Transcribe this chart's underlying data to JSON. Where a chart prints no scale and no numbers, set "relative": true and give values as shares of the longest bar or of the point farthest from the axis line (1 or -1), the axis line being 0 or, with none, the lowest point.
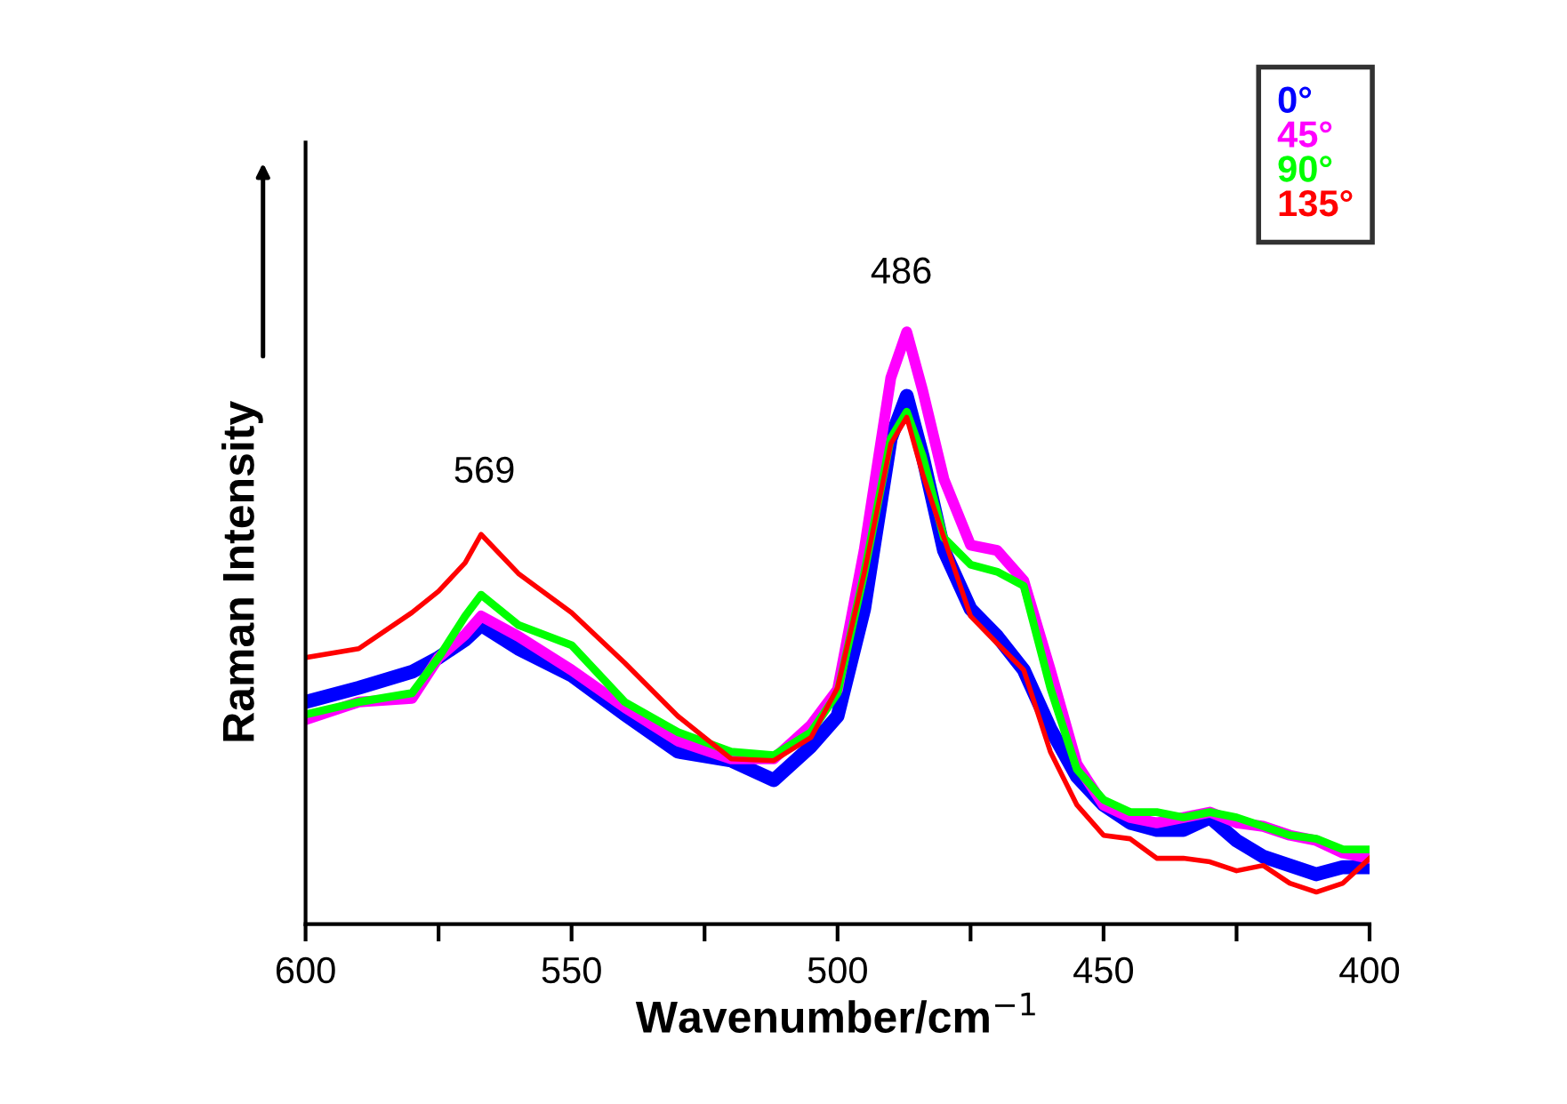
{
  "chart_data": {
    "type": "line",
    "relative": true,
    "xlabel": "Wavenumber/cm$^{−1}$",
    "ylabel": "Raman Intensity",
    "x": [
      600,
      590,
      580,
      575,
      570,
      567,
      560,
      550,
      540,
      530,
      520,
      512,
      505,
      500,
      495,
      490,
      487,
      484,
      480,
      475,
      470,
      465,
      460,
      455,
      450,
      445,
      440,
      435,
      430,
      425,
      420,
      415,
      410,
      405,
      400
    ],
    "xlim": [
      600,
      400
    ],
    "xticks": [
      600,
      {
        "value": 575,
        "label": null
      },
      550,
      {
        "value": 525,
        "label": null
      },
      500,
      {
        "value": 475,
        "label": null
      },
      450,
      {
        "value": 425,
        "label": null
      },
      400
    ],
    "grid": false,
    "legend": "top right",
    "line_style": "solid",
    "marker": "none",
    "annotations": [
      "569",
      "486"
    ],
    "series": [
      {
        "name": "0°",
        "color": "#0000ff",
        "values": [
          0.375,
          0.399,
          0.426,
          0.45,
          0.48,
          0.505,
          0.465,
          0.42,
          0.354,
          0.291,
          0.276,
          0.243,
          0.3,
          0.351,
          0.532,
          0.82,
          0.892,
          0.79,
          0.631,
          0.532,
          0.486,
          0.429,
          0.33,
          0.249,
          0.201,
          0.171,
          0.159,
          0.159,
          0.18,
          0.141,
          0.114,
          0.099,
          0.084,
          0.096,
          0.096
        ]
      },
      {
        "name": "45°",
        "color": "#ff00ff",
        "values": [
          0.345,
          0.375,
          0.381,
          0.45,
          0.489,
          0.52,
          0.486,
          0.429,
          0.366,
          0.309,
          0.279,
          0.279,
          0.336,
          0.396,
          0.631,
          0.922,
          1,
          0.901,
          0.751,
          0.64,
          0.631,
          0.58,
          0.429,
          0.27,
          0.201,
          0.18,
          0.171,
          0.18,
          0.189,
          0.171,
          0.165,
          0.15,
          0.141,
          0.12,
          0.111
        ]
      },
      {
        "name": "90°",
        "color": "#00ff00",
        "values": [
          0.354,
          0.375,
          0.39,
          0.45,
          0.52,
          0.556,
          0.505,
          0.471,
          0.375,
          0.324,
          0.291,
          0.285,
          0.324,
          0.39,
          0.592,
          0.82,
          0.865,
          0.79,
          0.652,
          0.607,
          0.595,
          0.571,
          0.399,
          0.261,
          0.21,
          0.189,
          0.189,
          0.18,
          0.189,
          0.18,
          0.165,
          0.15,
          0.144,
          0.126,
          0.126
        ]
      },
      {
        "name": "135°",
        "color": "#ff0000",
        "values": [
          0.45,
          0.465,
          0.526,
          0.562,
          0.61,
          0.658,
          0.592,
          0.526,
          0.441,
          0.351,
          0.279,
          0.276,
          0.315,
          0.399,
          0.592,
          0.811,
          0.856,
          0.76,
          0.652,
          0.52,
          0.474,
          0.429,
          0.291,
          0.201,
          0.15,
          0.144,
          0.111,
          0.111,
          0.105,
          0.09,
          0.099,
          0.069,
          0.054,
          0.069,
          0.111
        ]
      }
    ]
  }
}
